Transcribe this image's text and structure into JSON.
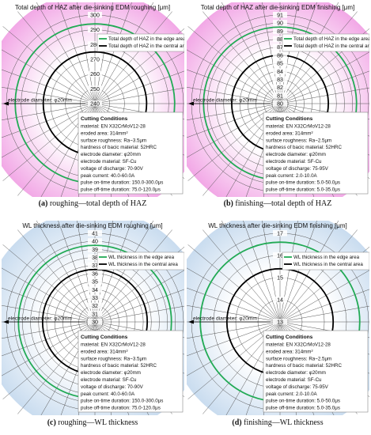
{
  "colors": {
    "haz_fill": "#f2a8e6",
    "haz_fill_center": "#ffffff",
    "wl_fill": "#c9dcef",
    "wl_fill_center": "#ffffff",
    "edge": "#22aa55",
    "central": "#000000",
    "grid": "#555555"
  },
  "labels": {
    "electrode_diameter": "electrode diameter: φ20mm"
  },
  "captions": [
    {
      "tag": "(a)",
      "text": " roughing—total depth of HAZ"
    },
    {
      "tag": "(b)",
      "text": " finishing—total depth of HAZ"
    },
    {
      "tag": "(c)",
      "text": " roughing—WL thickness"
    },
    {
      "tag": "(d)",
      "text": " finishing—WL thickness"
    }
  ],
  "chart_data": [
    {
      "type": "polar",
      "title": "Total depth of HAZ after die-sinking EDM roughing [μm]",
      "fill": "haz",
      "r_range": [
        240,
        300
      ],
      "r_ticks": [
        240,
        250,
        260,
        270,
        280,
        290,
        300
      ],
      "angular_divisions": 36,
      "series": [
        {
          "name": "Total depth of HAZ in the edge area",
          "color": "#22aa55",
          "value": 294
        },
        {
          "name": "Total depth of HAZ in the central area",
          "color": "#000000",
          "value": 275
        }
      ],
      "legend": "upper-right",
      "conditions": {
        "heading": "Cutting Conditions",
        "lines": [
          "material: EN X32CrMoV12-28",
          "eroded area: 314mm²",
          "surface roughness:  Ra~3.5μm",
          "hardness of bacic material:  52HRC",
          "electrode diameter: φ20mm",
          "electrode material: SF-Cu",
          "voltage of discharge:  70-90V",
          "peak current: 40.0-60.0A",
          "pulse on-time duration: 150.0-300.0μs",
          "pulse off-time duration: 75.0-120.0μs"
        ]
      }
    },
    {
      "type": "polar",
      "title": "Total depth of HAZ after die-sinking EDM finishing [μm]",
      "fill": "haz",
      "r_range": [
        80,
        91
      ],
      "r_ticks": [
        80,
        81,
        82,
        83,
        84,
        85,
        86,
        87,
        88,
        89,
        90,
        91
      ],
      "angular_divisions": 36,
      "series": [
        {
          "name": "Total depth of HAZ in the edge area",
          "color": "#22aa55",
          "value": 89.5
        },
        {
          "name": "Total depth of HAZ in the central area",
          "color": "#000000",
          "value": 86
        }
      ],
      "legend": "upper-right",
      "conditions": {
        "heading": "Cutting Conditions",
        "lines": [
          "material: EN X32CrMoV12-28",
          "eroded area: 314mm²",
          "surface roughness:  Ra~2.5μm",
          "hardness of bacic material:  52HRC",
          "electrode diameter: φ20mm",
          "electrode material: SF-Cu",
          "voltage of discharge:  75-95V",
          "peak current: 2.0-10.0A",
          "pulse on-time duration: 5.0-50.0μs",
          "pulse off-time duration: 5.0-35.0μs"
        ]
      }
    },
    {
      "type": "polar",
      "title": "WL thickness  after die-sinking EDM roughing [μm]",
      "fill": "wl",
      "r_range": [
        30,
        41
      ],
      "r_ticks": [
        30,
        31,
        32,
        33,
        34,
        35,
        36,
        37,
        38,
        39,
        40,
        41
      ],
      "angular_divisions": 36,
      "series": [
        {
          "name": "WL thickness in the edge area",
          "color": "#22aa55",
          "value": 39.5
        },
        {
          "name": "WL thickness in the central area",
          "color": "#000000",
          "value": 36.5
        }
      ],
      "legend": "upper-right",
      "conditions": {
        "heading": "Cutting Conditions",
        "lines": [
          "material: EN X32CrMoV12-28",
          "eroded area: 314mm²",
          "surface roughness:  Ra~3.5μm",
          "hardness of bacic material:  52HRC",
          "electrode diameter: φ20mm",
          "electrode material: SF-Cu",
          "voltage of discharge:  70-90V",
          "peak current: 40.0-60.0A",
          "pulse on-time duration: 150.0-300.0μs",
          "pulse off-time duration: 75.0-120.0μs"
        ]
      }
    },
    {
      "type": "polar",
      "title": "WL thickness  after die-sinking EDM finishing [μm]",
      "fill": "wl",
      "r_range": [
        13,
        17
      ],
      "r_ticks": [
        13,
        14,
        15,
        16,
        17
      ],
      "angular_divisions": 36,
      "series": [
        {
          "name": "WL thickness in the edge area",
          "color": "#22aa55",
          "value": 16.6
        },
        {
          "name": "WL thickness in the central area",
          "color": "#000000",
          "value": 15.4
        }
      ],
      "legend": "upper-right",
      "conditions": {
        "heading": "Cutting Conditions",
        "lines": [
          "material: EN X32CrMoV12-28",
          "eroded area: 314mm²",
          "surface roughness:  Ra~2.5μm",
          "hardness of bacic material:  52HRC",
          "electrode diameter: φ20mm",
          "electrode material: SF-Cu",
          "voltage of discharge:  75-95V",
          "peak current: 2.0-10.0A",
          "pulse on-time duration: 5.0-50.0μs",
          "pulse off-time duration: 5.0-35.0μs"
        ]
      }
    }
  ]
}
